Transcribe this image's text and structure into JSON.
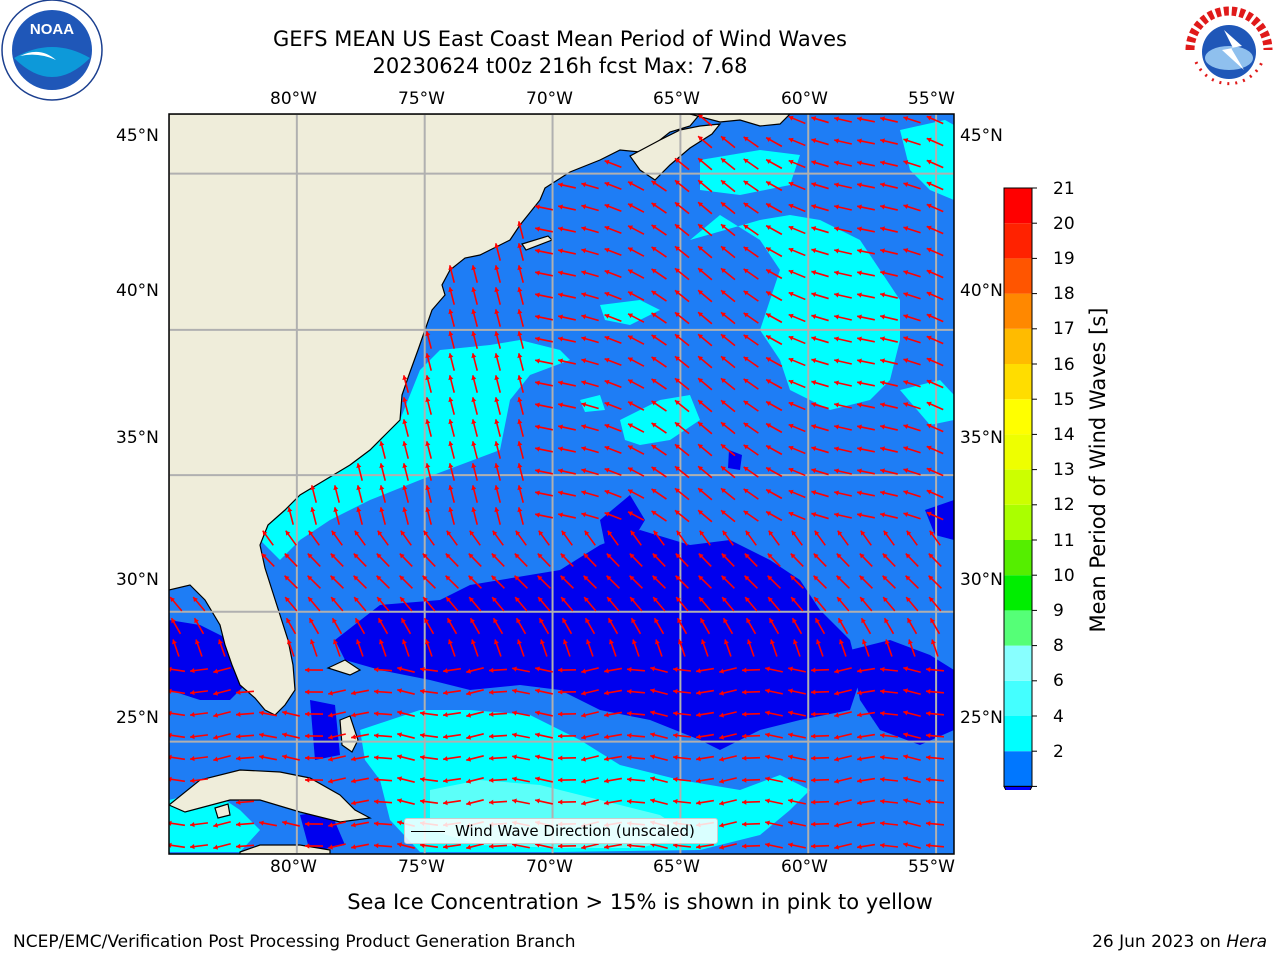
{
  "title": {
    "line1": "GEFS MEAN US East Coast Mean Period of Wind Waves",
    "line2": "20230624 t00z 216h fcst   Max: 7.68"
  },
  "logos": {
    "left": {
      "text": "NOAA",
      "ring": "NATIONAL OCEANIC AND ATMOSPHERIC ADMINISTRATION · U.S. DEPARTMENT OF COMMERCE"
    },
    "right": {
      "ring": "NATIONAL WEATHER SERVICE"
    }
  },
  "map": {
    "lon_labels": [
      "80°W",
      "75°W",
      "70°W",
      "65°W",
      "60°W",
      "55°W"
    ],
    "lat_labels": [
      "45°N",
      "40°N",
      "35°N",
      "30°N",
      "25°N"
    ],
    "lon_range": [
      -85,
      -54.3
    ],
    "lat_range": [
      20.5,
      46.8
    ],
    "grid": true,
    "land_color": "#efedda",
    "arrow_color": "#ff0000",
    "legend_text": "Wind Wave Direction (unscaled)",
    "legend_placement": "bottom-center"
  },
  "colorbar": {
    "label": "Mean Period of Wind Waves [s]",
    "tick_labels": [
      "21",
      "20",
      "19",
      "18",
      "17",
      "16",
      "15",
      "14",
      "13",
      "12",
      "11",
      "10",
      "9",
      "8",
      "6",
      "4",
      "2"
    ],
    "levels": [
      2,
      4,
      6,
      8,
      9,
      10,
      11,
      12,
      13,
      14,
      15,
      16,
      17,
      18,
      19,
      20,
      21
    ],
    "colors": [
      "#0077ff",
      "#00ffff",
      "#44ffff",
      "#88ffff",
      "#55ff77",
      "#00ee00",
      "#55ee00",
      "#aaff00",
      "#ccff00",
      "#eeff00",
      "#ffff00",
      "#ffdd00",
      "#ffbb00",
      "#ff8800",
      "#ff5500",
      "#ff2200",
      "#ff0000"
    ],
    "under_color": "#0000ff"
  },
  "period_palette": {
    "lt2": "#0000ee",
    "2to4": "#1e7df5",
    "4to6": "#00ffff",
    "6to8": "#5cfff9"
  },
  "subtitle": "Sea Ice Concentration > 15% is shown in pink to yellow",
  "footer": {
    "left": "NCEP/EMC/Verification Post Processing Product Generation Branch",
    "right_date": "26 Jun 2023 on ",
    "right_host": "Hera"
  }
}
